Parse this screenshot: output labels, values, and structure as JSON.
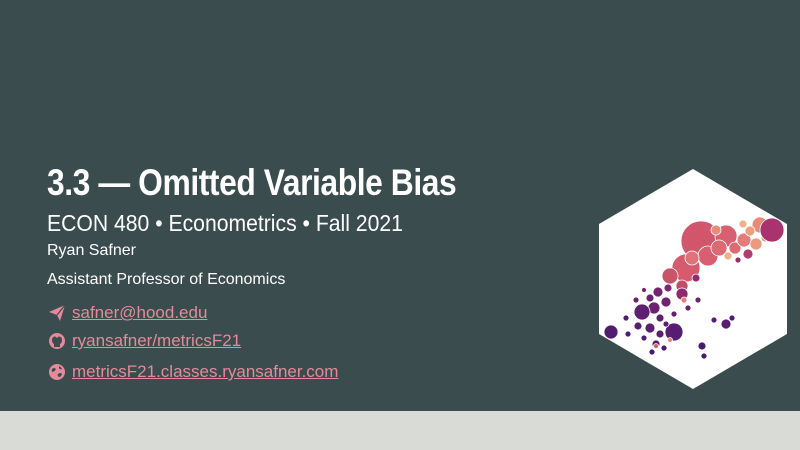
{
  "slide": {
    "title": "3.3 — Omitted Variable Bias",
    "subtitle": "ECON 480 • Econometrics • Fall 2021",
    "author": "Ryan Safner",
    "role": "Assistant Professor of Economics"
  },
  "links": {
    "email": "safner@hood.edu",
    "github": "ryansafner/metricsF21",
    "website": "metricsF21.classes.ryansafner.com"
  },
  "icons": {
    "email": "paper-plane-icon",
    "github": "github-icon",
    "website": "globe-icon"
  },
  "colors": {
    "background": "#3b4c4e",
    "link": "#e48a9a",
    "footer": "#d9dbd6"
  }
}
